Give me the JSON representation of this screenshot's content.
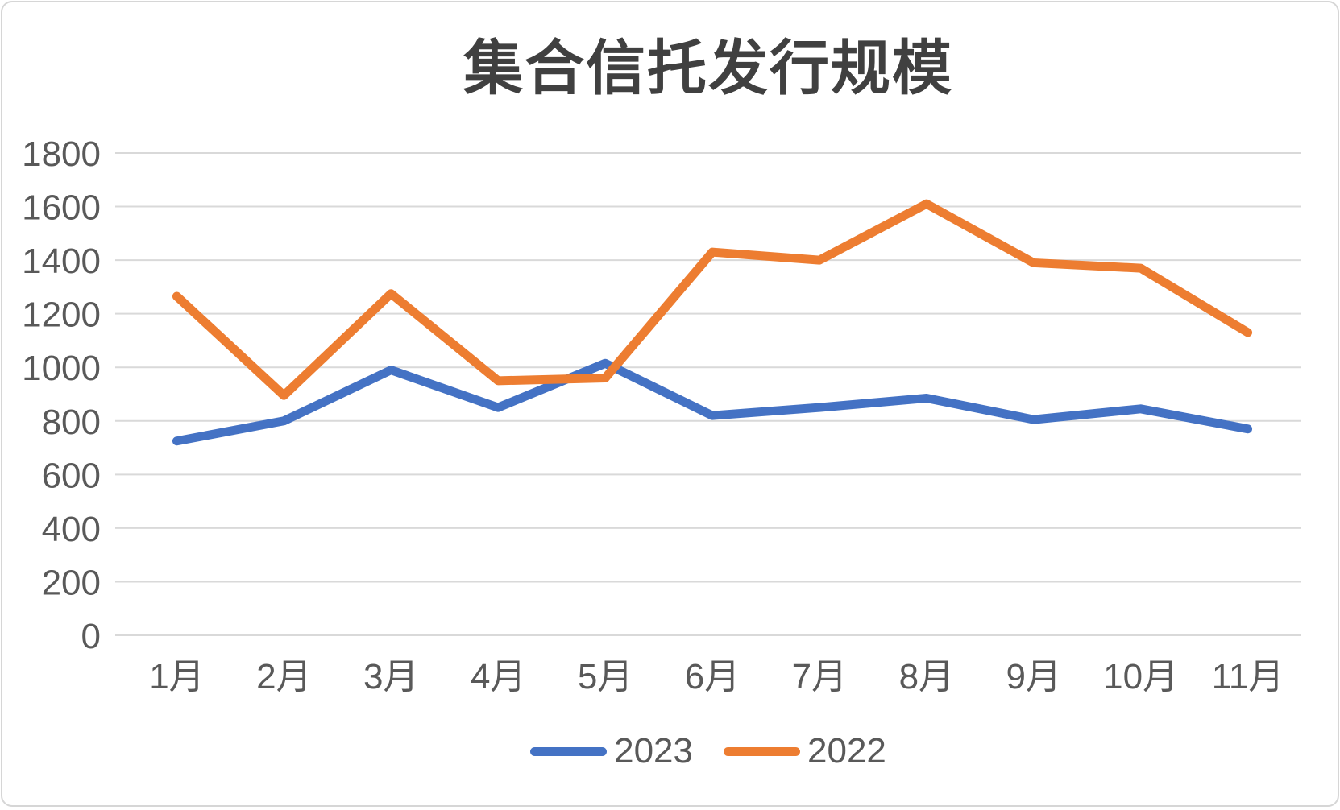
{
  "chart_data": {
    "type": "line",
    "title": "集合信托发行规模",
    "categories": [
      "1月",
      "2月",
      "3月",
      "4月",
      "5月",
      "6月",
      "7月",
      "8月",
      "9月",
      "10月",
      "11月"
    ],
    "series": [
      {
        "name": "2023",
        "color": "#4472C4",
        "values": [
          725,
          800,
          990,
          850,
          1015,
          820,
          850,
          885,
          805,
          845,
          770
        ]
      },
      {
        "name": "2022",
        "color": "#ED7D31",
        "values": [
          1265,
          895,
          1275,
          950,
          960,
          1430,
          1400,
          1610,
          1390,
          1370,
          1130
        ]
      }
    ],
    "xlabel": "",
    "ylabel": "",
    "ylim": [
      0,
      1800
    ],
    "ytick_step": 200,
    "grid": true,
    "legend_position": "bottom",
    "grid_color": "#D9D9D9",
    "axis_label_color": "#595959",
    "title_color": "#404040",
    "background_color": "#FFFFFF"
  }
}
